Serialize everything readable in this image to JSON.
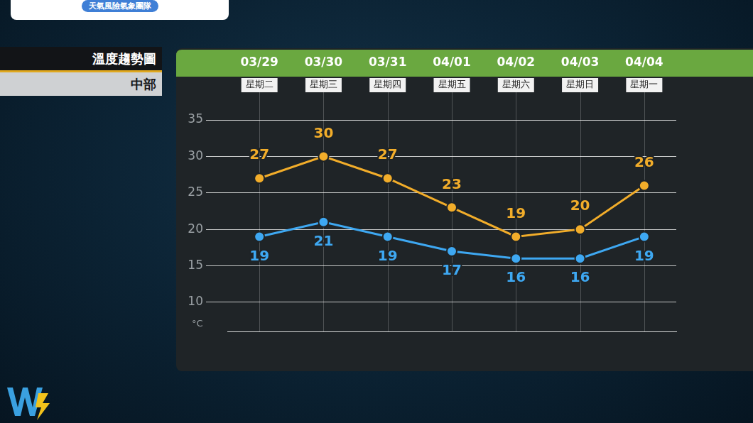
{
  "header": {
    "banner": "天氣風險氣象團隊",
    "title": "溫度趨勢圖",
    "region": "中部"
  },
  "chart_data": {
    "type": "line",
    "categories": [
      [
        "03/29",
        "星期二"
      ],
      [
        "03/30",
        "星期三"
      ],
      [
        "03/31",
        "星期四"
      ],
      [
        "04/01",
        "星期五"
      ],
      [
        "04/02",
        "星期六"
      ],
      [
        "04/03",
        "星期日"
      ],
      [
        "04/04",
        "星期一"
      ]
    ],
    "series": [
      {
        "color": "#f2ad2a",
        "marker": "circle",
        "values": [
          27,
          30,
          27,
          23,
          19,
          20,
          26
        ]
      },
      {
        "color": "#3ea8f2",
        "marker": "circle",
        "values": [
          19,
          21,
          19,
          17,
          16,
          16,
          19
        ]
      }
    ],
    "y_label": "°C",
    "ylim": [
      6,
      35
    ],
    "yticks": [
      10,
      15,
      20,
      25,
      30,
      35
    ],
    "grid": true,
    "data_labels": true
  }
}
